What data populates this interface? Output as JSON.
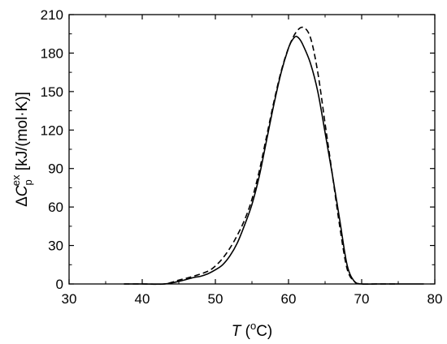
{
  "chart_data": {
    "type": "line",
    "title": "",
    "xlabel": {
      "var": "T",
      "open": " (",
      "sup": "o",
      "unit": "C)"
    },
    "ylabel": {
      "delta": "Δ",
      "var": "C",
      "sub": "p",
      "sup": "ex",
      "unit": " [kJ/(mol·K)]"
    },
    "xlim": [
      30,
      80
    ],
    "ylim": [
      0,
      210
    ],
    "x_ticks": [
      "30",
      "40",
      "50",
      "60",
      "70",
      "80"
    ],
    "y_ticks": [
      "0",
      "30",
      "60",
      "90",
      "120",
      "150",
      "180",
      "210"
    ],
    "grid": false,
    "legend": "none",
    "series": [
      {
        "style": "solid",
        "x": [
          37.5,
          40,
          43,
          45,
          47,
          48,
          49,
          50,
          51,
          52,
          53,
          54,
          55,
          56,
          57,
          58,
          59,
          60,
          60.5,
          61,
          61.5,
          62,
          63,
          64,
          65,
          66,
          67,
          68,
          69,
          70,
          72,
          75,
          78.5
        ],
        "y": [
          0,
          0,
          0,
          2,
          5,
          6,
          8,
          11,
          15,
          22,
          32,
          46,
          62,
          84,
          112,
          140,
          165,
          184,
          190,
          193,
          191,
          186,
          172,
          150,
          118,
          85,
          50,
          15,
          2,
          0,
          0,
          0,
          0
        ]
      },
      {
        "style": "dashed",
        "x": [
          37.5,
          40,
          43,
          45,
          47,
          49,
          50,
          51,
          52,
          53,
          54,
          55,
          56,
          57,
          58,
          59,
          60,
          61,
          62,
          63,
          64,
          65,
          66,
          67,
          68,
          69,
          70,
          72,
          75
        ],
        "y": [
          0,
          0,
          0,
          3,
          6,
          10,
          14,
          20,
          28,
          38,
          50,
          66,
          88,
          115,
          142,
          166,
          184,
          196,
          200,
          192,
          165,
          125,
          85,
          45,
          12,
          2,
          0,
          0,
          0
        ]
      }
    ],
    "colors": {
      "line": "#000000",
      "axis": "#000000"
    }
  }
}
